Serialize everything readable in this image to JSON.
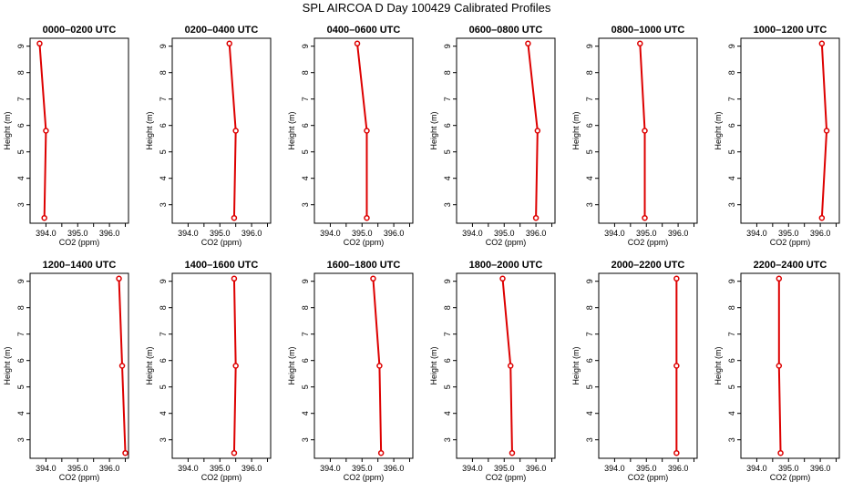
{
  "figure_title": "SPL AIRCOA D  Day 100429  Calibrated Profiles",
  "chart_data": {
    "type": "line",
    "xlabel": "CO2 (ppm)",
    "ylabel": "Height (m)",
    "xlim": [
      393.5,
      396.6
    ],
    "ylim": [
      2.3,
      9.3
    ],
    "xticks": [
      394.0,
      394.5,
      395.0,
      395.5,
      396.0,
      396.5
    ],
    "xtick_labels": [
      "394.0",
      "",
      "395.0",
      "",
      "396.0",
      ""
    ],
    "yticks": [
      3,
      4,
      5,
      6,
      7,
      8,
      9
    ],
    "heights": [
      9.1,
      5.8,
      2.5
    ],
    "color": "#dd0000",
    "grid": false,
    "panels": [
      {
        "title": "0000–0200 UTC",
        "co2": [
          393.8,
          394.0,
          393.95
        ]
      },
      {
        "title": "0200–0400 UTC",
        "co2": [
          395.3,
          395.5,
          395.45
        ]
      },
      {
        "title": "0400–0600 UTC",
        "co2": [
          394.85,
          395.15,
          395.15
        ]
      },
      {
        "title": "0600–0800 UTC",
        "co2": [
          395.75,
          396.05,
          396.0
        ]
      },
      {
        "title": "0800–1000 UTC",
        "co2": [
          394.8,
          394.95,
          394.95
        ]
      },
      {
        "title": "1000–1200 UTC",
        "co2": [
          396.05,
          396.2,
          396.05
        ]
      },
      {
        "title": "1200–1400 UTC",
        "co2": [
          396.3,
          396.4,
          396.5
        ]
      },
      {
        "title": "1400–1600 UTC",
        "co2": [
          395.45,
          395.5,
          395.45
        ]
      },
      {
        "title": "1600–1800 UTC",
        "co2": [
          395.35,
          395.55,
          395.6
        ]
      },
      {
        "title": "1800–2000 UTC",
        "co2": [
          394.95,
          395.2,
          395.25
        ]
      },
      {
        "title": "2000–2200 UTC",
        "co2": [
          395.95,
          395.95,
          395.95
        ]
      },
      {
        "title": "2200–2400 UTC",
        "co2": [
          394.7,
          394.7,
          394.75
        ]
      }
    ]
  }
}
